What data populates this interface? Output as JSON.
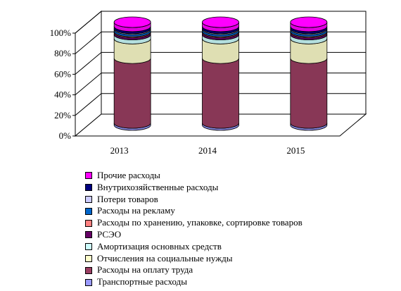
{
  "chart_data": {
    "type": "bar",
    "stacked": true,
    "percent_stacked": true,
    "style": "3d-cylinder",
    "title": "",
    "xlabel": "",
    "ylabel": "",
    "categories": [
      "2013",
      "2014",
      "2015"
    ],
    "ylim": [
      0,
      100
    ],
    "yticks": [
      "0%",
      "20%",
      "40%",
      "60%",
      "80%",
      "100%"
    ],
    "legend_position": "bottom",
    "series": [
      {
        "name": "Транспортные расходы",
        "color": "#9a9aff",
        "values": [
          2,
          2,
          2
        ]
      },
      {
        "name": "Расходы на оплату труда",
        "color": "#9b3e62",
        "values": [
          63,
          63,
          63
        ]
      },
      {
        "name": "Отчисления на социальные нужды",
        "color": "#fdfdcb",
        "values": [
          19,
          19,
          19
        ]
      },
      {
        "name": "Амортизация основных средств",
        "color": "#cdfdfd",
        "values": [
          4,
          4,
          4
        ]
      },
      {
        "name": "РСЭО",
        "color": "#660066",
        "values": [
          2,
          2,
          2
        ]
      },
      {
        "name": "Расходы по хранению, упаковке, сортировке товаров",
        "color": "#ff8080",
        "values": [
          1,
          1,
          1
        ]
      },
      {
        "name": "Расходы на рекламу",
        "color": "#0066cc",
        "values": [
          2,
          2,
          2
        ]
      },
      {
        "name": "Потери товаров",
        "color": "#ccccff",
        "values": [
          1,
          1,
          1
        ]
      },
      {
        "name": "Внутрихозяйственные расходы",
        "color": "#000080",
        "values": [
          2,
          2,
          2
        ]
      },
      {
        "name": "Прочие расходы",
        "color": "#ff00ff",
        "values": [
          4,
          4,
          4
        ]
      }
    ]
  }
}
